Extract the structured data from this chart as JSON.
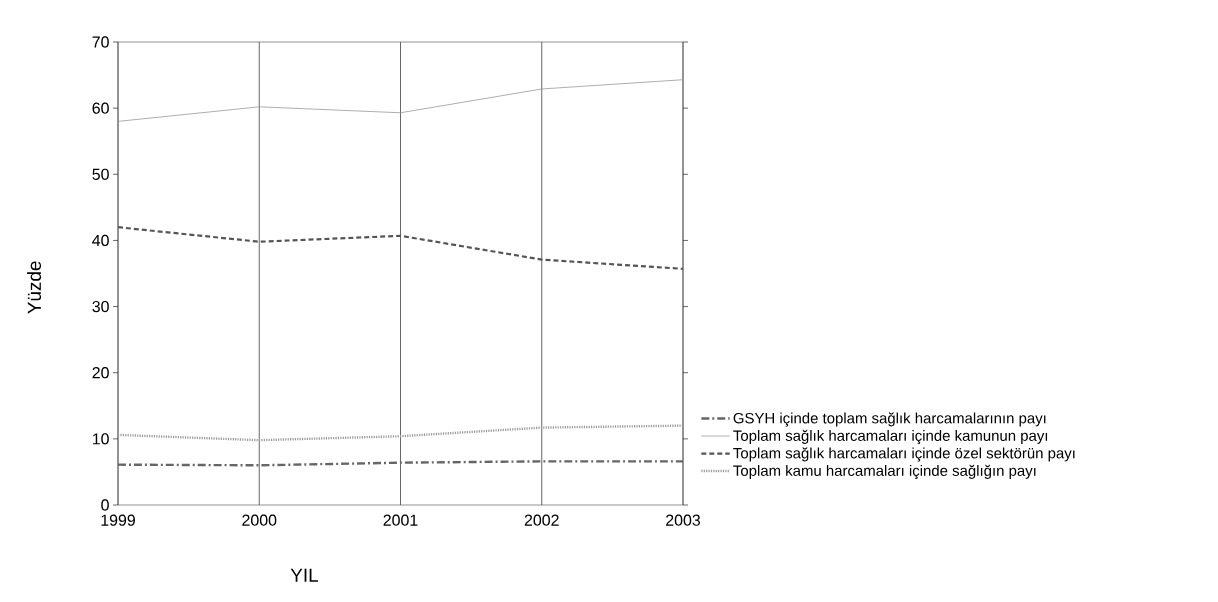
{
  "chart_data": {
    "type": "line",
    "xlabel": "YIL",
    "ylabel": "Yüzde",
    "x": [
      1999,
      2000,
      2001,
      2002,
      2003
    ],
    "xlim": [
      1999,
      2003
    ],
    "xticks": [
      1999,
      2000,
      2001,
      2002,
      2003
    ],
    "ylim": [
      0,
      70
    ],
    "yticks": [
      0,
      10,
      20,
      30,
      40,
      50,
      60,
      70
    ],
    "grid": "x",
    "legend": "right",
    "marker": "none",
    "series": [
      {
        "name": "GSYH içinde toplam sağlık harcamalarının payı",
        "color": "#666666",
        "line_style": "dashdot",
        "values": [
          6.1,
          6.0,
          6.4,
          6.6,
          6.6
        ]
      },
      {
        "name": "Toplam sağlık harcamaları içinde kamunun payı",
        "color": "#999999",
        "line_style": "solid",
        "values": [
          58.0,
          60.2,
          59.3,
          62.9,
          64.3
        ]
      },
      {
        "name": "Toplam sağlık harcamaları içinde özel sektörün payı",
        "color": "#555555",
        "line_style": "dashed",
        "values": [
          42.0,
          39.8,
          40.7,
          37.1,
          35.7
        ]
      },
      {
        "name": "Toplam kamu harcamaları içinde sağlığın payı",
        "color": "#999999",
        "line_style": "dotted",
        "values": [
          10.6,
          9.8,
          10.4,
          11.7,
          12.0
        ]
      }
    ]
  }
}
